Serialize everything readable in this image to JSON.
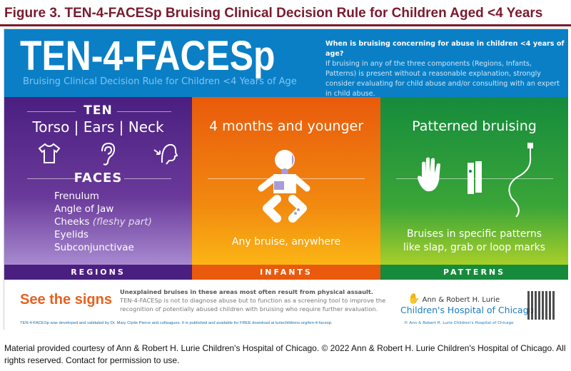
{
  "figure_title": "Figure 3. TEN-4-FACESp Bruising Clinical Decision Rule for Children Aged <4 Years",
  "header": {
    "title": "TEN-4-FACESp",
    "subtitle": "Bruising Clinical Decision Rule for Children <4 Years of Age",
    "question": "When is bruising concerning for abuse in children <4 years of age?",
    "answer": "If bruising in any of the three components (Regions, Infants, Patterns) is present without a reasonable explanation, strongly consider evaluating for child abuse and/or consulting with an expert in child abuse."
  },
  "regions": {
    "ten_heading": "TEN",
    "ten_line": "Torso | Ears | Neck",
    "faces_heading": "FACES",
    "faces": [
      "Frenulum",
      "Angle of Jaw",
      "Cheeks",
      "Eyelids",
      "Subconjunctivae"
    ],
    "cheeks_note": "(fleshy part)",
    "label": "REGIONS",
    "icons": [
      "onesie-icon",
      "ear-icon",
      "neck-icon"
    ]
  },
  "infants": {
    "heading": "4 months and younger",
    "caption": "Any bruise, anywhere",
    "label": "INFANTS",
    "icon": "baby-icon"
  },
  "patterns": {
    "heading": "Patterned bruising",
    "caption": "Bruises in specific patterns like slap, grab or loop marks",
    "label": "PATTERNS",
    "icons": [
      "hand-icon",
      "belt-icon",
      "cord-icon"
    ]
  },
  "bottom": {
    "see_signs": "See the signs",
    "lead": "Unexplained bruises in these areas most often result from physical assault.",
    "body": "TEN-4-FACESp is not to diagnose abuse but to function as a screening tool to improve the recognition of potentially abused children with bruising who require further evaluation.",
    "credit": "TEN-4-FACESp was developed and validated by Dr. Mary Clyde Pierce and colleagues. It is published and available for FREE download at luriechildrens.org/ten-4-facesp.",
    "logo_line1": "Ann & Robert H. Lurie",
    "logo_line2": "Children's Hospital of Chicago",
    "copyright": "© Ann & Robert H. Lurie Children's Hospital of Chicago"
  },
  "footer": "Material provided courtesy of Ann & Robert H. Lurie Children's Hospital of Chicago. © 2022 Ann & Robert H. Lurie Children's Hospital of Chicago. All rights reserved. Contact for permission to use.",
  "colors": {
    "title": "#7a1a2e",
    "header": "#0a7fc6",
    "regions": "#4a1f80",
    "infants": "#e95a0c",
    "patterns": "#168b3c",
    "see_signs": "#e8601c"
  }
}
